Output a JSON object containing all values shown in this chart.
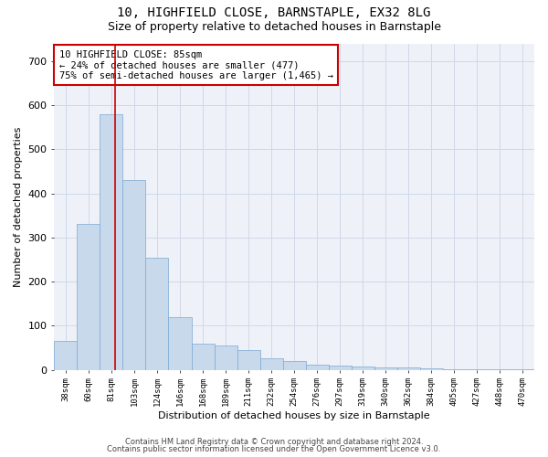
{
  "title1": "10, HIGHFIELD CLOSE, BARNSTAPLE, EX32 8LG",
  "title2": "Size of property relative to detached houses in Barnstaple",
  "xlabel": "Distribution of detached houses by size in Barnstaple",
  "ylabel": "Number of detached properties",
  "categories": [
    "38sqm",
    "60sqm",
    "81sqm",
    "103sqm",
    "124sqm",
    "146sqm",
    "168sqm",
    "189sqm",
    "211sqm",
    "232sqm",
    "254sqm",
    "276sqm",
    "297sqm",
    "319sqm",
    "340sqm",
    "362sqm",
    "384sqm",
    "405sqm",
    "427sqm",
    "448sqm",
    "470sqm"
  ],
  "values": [
    65,
    330,
    580,
    430,
    255,
    120,
    60,
    55,
    45,
    25,
    20,
    12,
    10,
    8,
    5,
    5,
    3,
    2,
    2,
    1,
    1
  ],
  "bar_color": "#c9d9ec",
  "bar_edge_color": "#7aa8d4",
  "grid_color": "#d0d8e8",
  "bg_color": "#eef2f8",
  "red_line_color": "#cc0000",
  "annotation_text": "10 HIGHFIELD CLOSE: 85sqm\n← 24% of detached houses are smaller (477)\n75% of semi-detached houses are larger (1,465) →",
  "red_line_x": 2.15,
  "ylim": [
    0,
    740
  ],
  "yticks": [
    0,
    100,
    200,
    300,
    400,
    500,
    600,
    700
  ],
  "footnote1": "Contains HM Land Registry data © Crown copyright and database right 2024.",
  "footnote2": "Contains public sector information licensed under the Open Government Licence v3.0."
}
